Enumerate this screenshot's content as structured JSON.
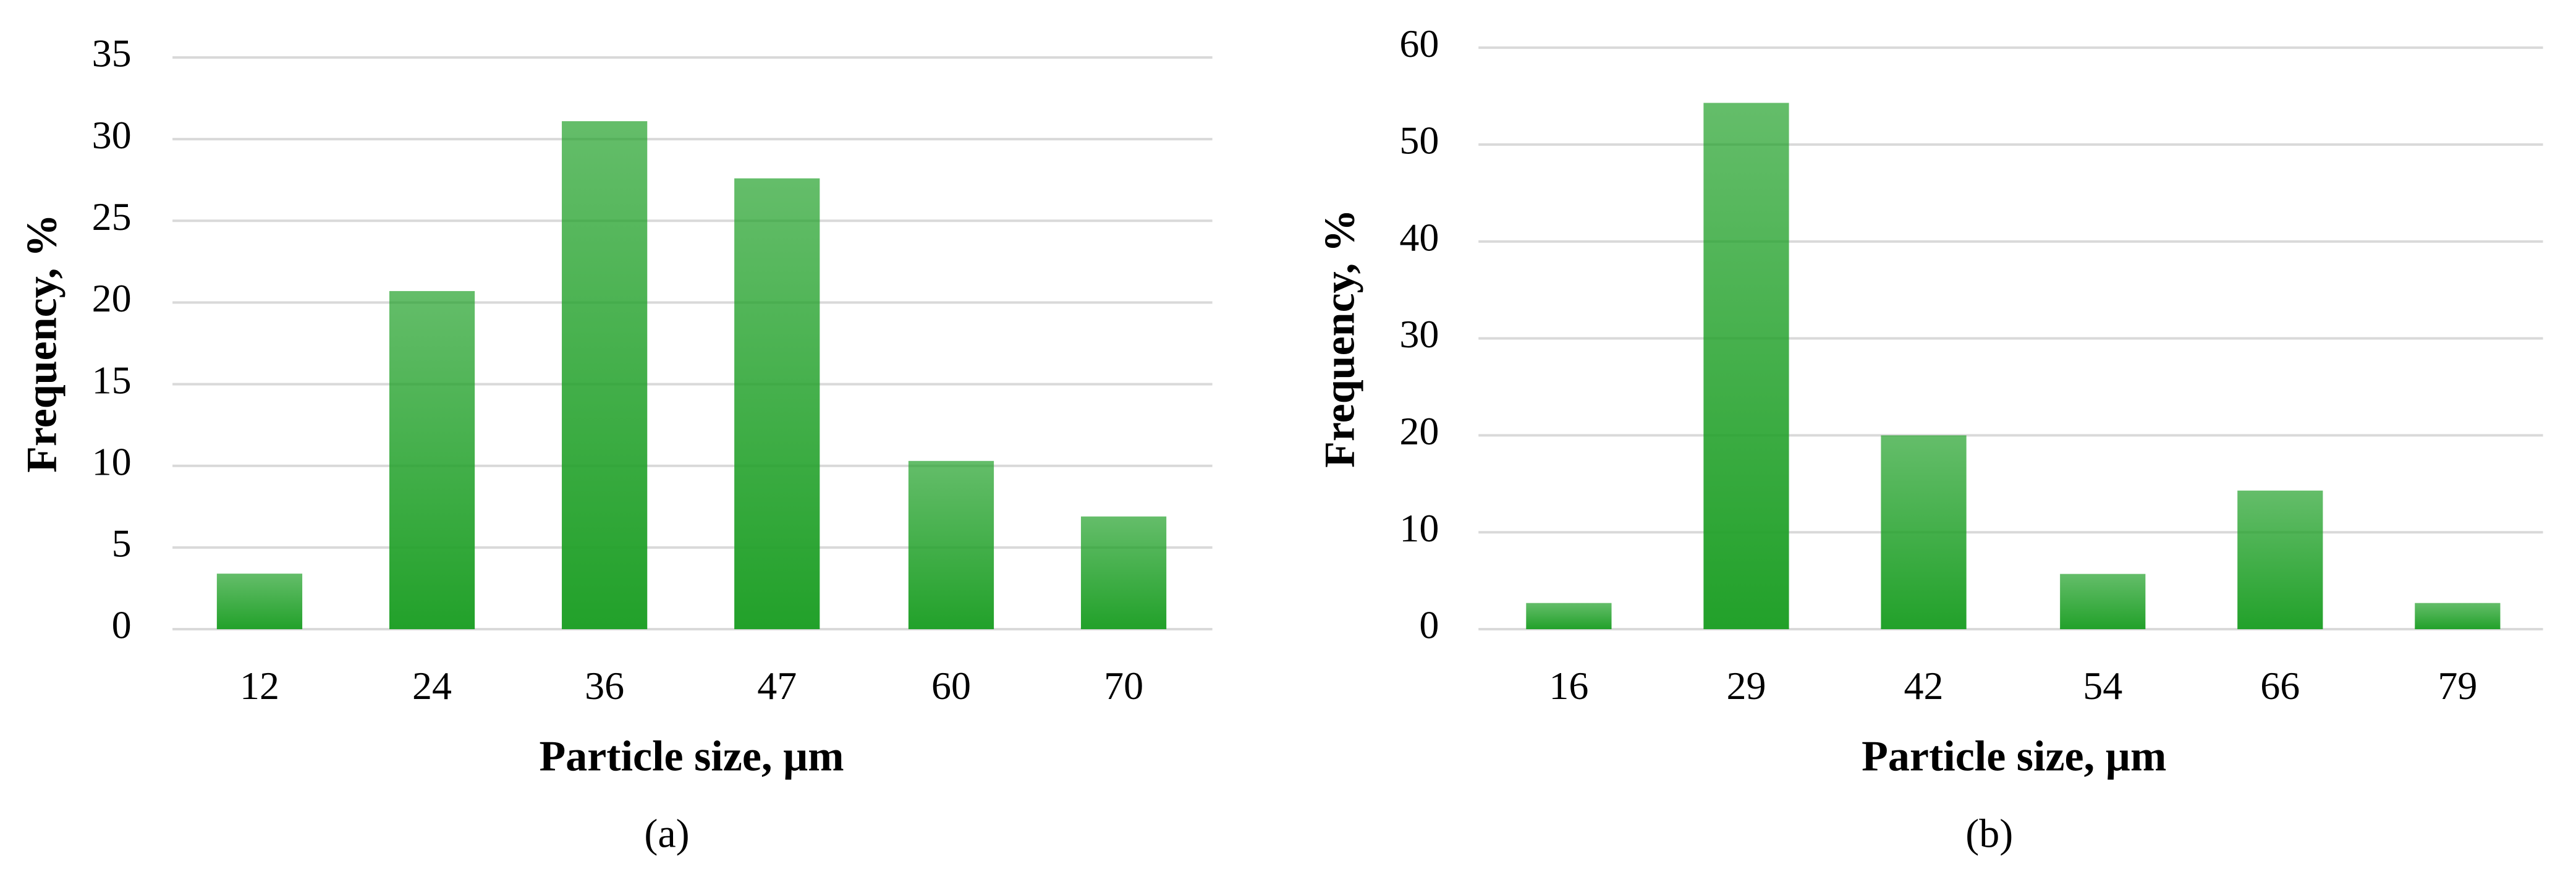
{
  "chart_data": [
    {
      "type": "bar",
      "categories": [
        "12",
        "24",
        "36",
        "47",
        "60",
        "70"
      ],
      "values": [
        3.4,
        20.7,
        31.1,
        27.6,
        10.3,
        6.9
      ],
      "color": "#22a12a",
      "ylim": [
        0,
        35
      ],
      "yticks": [
        0,
        5,
        10,
        15,
        20,
        25,
        30,
        35
      ],
      "grid": true,
      "x_label": "Particle size, µm",
      "y_label": "Frequency, %",
      "caption": "(a)"
    },
    {
      "type": "bar",
      "categories": [
        "16",
        "29",
        "42",
        "54",
        "66",
        "79"
      ],
      "values": [
        2.7,
        54.3,
        20,
        5.7,
        14.3,
        2.7
      ],
      "color": "#22a12a",
      "ylim": [
        0,
        60
      ],
      "yticks": [
        0,
        10,
        20,
        30,
        40,
        50,
        60
      ],
      "grid": true,
      "x_label": "Particle size, µm",
      "y_label": "Frequency, %",
      "caption": "(b)"
    }
  ]
}
